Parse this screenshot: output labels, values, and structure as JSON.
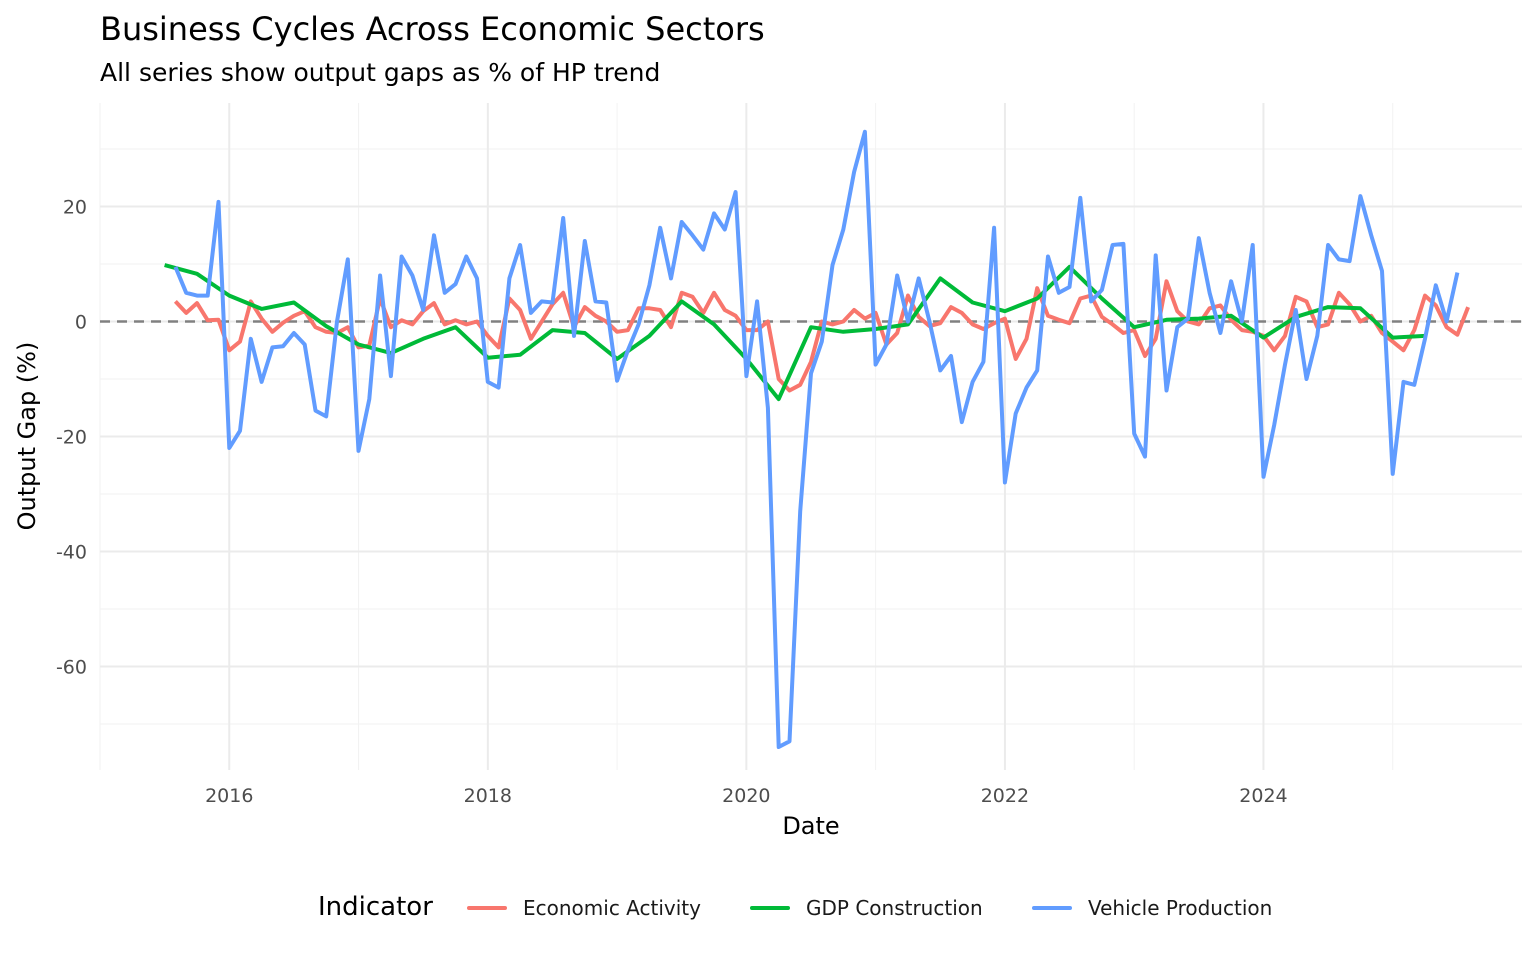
{
  "header": {
    "title": "Business Cycles Across Economic Sectors",
    "subtitle": "All series show output gaps as % of HP trend"
  },
  "legend": {
    "title": "Indicator",
    "items": [
      {
        "label": "Economic Activity",
        "color": "#F8766D"
      },
      {
        "label": "GDP Construction",
        "color": "#00BA38"
      },
      {
        "label": "Vehicle Production",
        "color": "#619CFF"
      }
    ]
  },
  "chart_data": {
    "type": "line",
    "title": "Business Cycles Across Economic Sectors",
    "subtitle": "All series show output gaps as % of HP trend",
    "xlabel": "Date",
    "ylabel": "Output Gap (%)",
    "xlim": [
      "2015-01",
      "2026-01"
    ],
    "ylim": [
      -78,
      38
    ],
    "x_ticks": [
      "2016",
      "2018",
      "2020",
      "2022",
      "2024"
    ],
    "y_ticks": [
      20,
      0,
      -20,
      -40,
      -60
    ],
    "grid": true,
    "legend_position": "bottom",
    "reference_line": {
      "y": 0,
      "style": "dashed",
      "color": "#808080"
    },
    "series": [
      {
        "name": "Economic Activity",
        "color": "#F8766D",
        "points": [
          [
            "2015-08",
            3.5
          ],
          [
            "2015-09",
            1.5
          ],
          [
            "2015-10",
            3.2
          ],
          [
            "2015-11",
            0.2
          ],
          [
            "2015-12",
            0.3
          ],
          [
            "2016-01",
            -5
          ],
          [
            "2016-02",
            -3.5
          ],
          [
            "2016-03",
            3.5
          ],
          [
            "2016-04",
            0.5
          ],
          [
            "2016-05",
            -1.8
          ],
          [
            "2016-06",
            -0.2
          ],
          [
            "2016-07",
            1
          ],
          [
            "2016-08",
            1.8
          ],
          [
            "2016-09",
            -1
          ],
          [
            "2016-10",
            -1.8
          ],
          [
            "2016-11",
            -2
          ],
          [
            "2016-12",
            -1
          ],
          [
            "2017-01",
            -4.5
          ],
          [
            "2017-02",
            -4.2
          ],
          [
            "2017-03",
            4
          ],
          [
            "2017-04",
            -1
          ],
          [
            "2017-05",
            0.2
          ],
          [
            "2017-06",
            -0.5
          ],
          [
            "2017-07",
            1.8
          ],
          [
            "2017-08",
            3.2
          ],
          [
            "2017-09",
            -0.5
          ],
          [
            "2017-10",
            0.2
          ],
          [
            "2017-11",
            -0.5
          ],
          [
            "2017-12",
            0
          ],
          [
            "2018-01",
            -2.5
          ],
          [
            "2018-02",
            -4.5
          ],
          [
            "2018-03",
            4
          ],
          [
            "2018-04",
            2
          ],
          [
            "2018-05",
            -3
          ],
          [
            "2018-06",
            0
          ],
          [
            "2018-07",
            3
          ],
          [
            "2018-08",
            5
          ],
          [
            "2018-09",
            -1
          ],
          [
            "2018-10",
            2.5
          ],
          [
            "2018-11",
            1
          ],
          [
            "2018-12",
            0
          ],
          [
            "2019-01",
            -1.8
          ],
          [
            "2019-02",
            -1.5
          ],
          [
            "2019-03",
            2.3
          ],
          [
            "2019-04",
            2.3
          ],
          [
            "2019-05",
            2
          ],
          [
            "2019-06",
            -1
          ],
          [
            "2019-07",
            5
          ],
          [
            "2019-08",
            4.3
          ],
          [
            "2019-09",
            1.5
          ],
          [
            "2019-10",
            5
          ],
          [
            "2019-11",
            2
          ],
          [
            "2019-12",
            1
          ],
          [
            "2020-01",
            -1.5
          ],
          [
            "2020-02",
            -1.5
          ],
          [
            "2020-03",
            0
          ],
          [
            "2020-04",
            -10
          ],
          [
            "2020-05",
            -12
          ],
          [
            "2020-06",
            -11
          ],
          [
            "2020-07",
            -7
          ],
          [
            "2020-08",
            0
          ],
          [
            "2020-09",
            -0.5
          ],
          [
            "2020-10",
            0
          ],
          [
            "2020-11",
            2
          ],
          [
            "2020-12",
            0.5
          ],
          [
            "2021-01",
            1.5
          ],
          [
            "2021-02",
            -4
          ],
          [
            "2021-03",
            -2
          ],
          [
            "2021-04",
            4.5
          ],
          [
            "2021-05",
            0.8
          ],
          [
            "2021-06",
            -0.8
          ],
          [
            "2021-07",
            -0.3
          ],
          [
            "2021-08",
            2.5
          ],
          [
            "2021-09",
            1.5
          ],
          [
            "2021-10",
            -0.5
          ],
          [
            "2021-11",
            -1.3
          ],
          [
            "2021-12",
            -0.3
          ],
          [
            "2022-01",
            0.5
          ],
          [
            "2022-02",
            -6.5
          ],
          [
            "2022-03",
            -3
          ],
          [
            "2022-04",
            5.8
          ],
          [
            "2022-05",
            1
          ],
          [
            "2022-06",
            0.3
          ],
          [
            "2022-07",
            -0.3
          ],
          [
            "2022-08",
            4
          ],
          [
            "2022-09",
            4.5
          ],
          [
            "2022-10",
            0.8
          ],
          [
            "2022-11",
            -0.5
          ],
          [
            "2022-12",
            -2
          ],
          [
            "2023-01",
            -1.5
          ],
          [
            "2023-02",
            -6
          ],
          [
            "2023-03",
            -3
          ],
          [
            "2023-04",
            7
          ],
          [
            "2023-05",
            1.8
          ],
          [
            "2023-06",
            0
          ],
          [
            "2023-07",
            -0.5
          ],
          [
            "2023-08",
            2.3
          ],
          [
            "2023-09",
            2.8
          ],
          [
            "2023-10",
            0.3
          ],
          [
            "2023-11",
            -1.5
          ],
          [
            "2023-12",
            -1.8
          ],
          [
            "2024-01",
            -2.5
          ],
          [
            "2024-02",
            -5
          ],
          [
            "2024-03",
            -2.5
          ],
          [
            "2024-04",
            4.3
          ],
          [
            "2024-05",
            3.5
          ],
          [
            "2024-06",
            -1
          ],
          [
            "2024-07",
            -0.5
          ],
          [
            "2024-08",
            5
          ],
          [
            "2024-09",
            3
          ],
          [
            "2024-10",
            0
          ],
          [
            "2024-11",
            1
          ],
          [
            "2024-12",
            -2
          ],
          [
            "2025-01",
            -3.5
          ],
          [
            "2025-02",
            -5
          ],
          [
            "2025-03",
            -1.5
          ],
          [
            "2025-04",
            4.5
          ],
          [
            "2025-05",
            2.8
          ],
          [
            "2025-06",
            -1
          ],
          [
            "2025-07",
            -2.3
          ],
          [
            "2025-08",
            2.5
          ]
        ]
      },
      {
        "name": "GDP Construction",
        "color": "#00BA38",
        "points": [
          [
            "2015-07",
            9.8
          ],
          [
            "2015-10",
            8.3
          ],
          [
            "2016-01",
            4.5
          ],
          [
            "2016-04",
            2.2
          ],
          [
            "2016-07",
            3.3
          ],
          [
            "2016-10",
            -0.8
          ],
          [
            "2017-01",
            -4
          ],
          [
            "2017-04",
            -5.5
          ],
          [
            "2017-07",
            -3
          ],
          [
            "2017-10",
            -1
          ],
          [
            "2018-01",
            -6.3
          ],
          [
            "2018-04",
            -5.8
          ],
          [
            "2018-07",
            -1.5
          ],
          [
            "2018-10",
            -2
          ],
          [
            "2019-01",
            -6.5
          ],
          [
            "2019-04",
            -2.5
          ],
          [
            "2019-07",
            3.5
          ],
          [
            "2019-10",
            -0.5
          ],
          [
            "2020-01",
            -6.5
          ],
          [
            "2020-04",
            -13.5
          ],
          [
            "2020-07",
            -1
          ],
          [
            "2020-10",
            -1.8
          ],
          [
            "2021-01",
            -1.3
          ],
          [
            "2021-04",
            -0.5
          ],
          [
            "2021-07",
            7.5
          ],
          [
            "2021-10",
            3.3
          ],
          [
            "2022-01",
            1.8
          ],
          [
            "2022-04",
            4
          ],
          [
            "2022-07",
            9.5
          ],
          [
            "2022-10",
            4
          ],
          [
            "2023-01",
            -1
          ],
          [
            "2023-04",
            0.3
          ],
          [
            "2023-07",
            0.5
          ],
          [
            "2023-10",
            1
          ],
          [
            "2024-01",
            -2.8
          ],
          [
            "2024-04",
            0.8
          ],
          [
            "2024-07",
            2.5
          ],
          [
            "2024-10",
            2.3
          ],
          [
            "2025-01",
            -2.8
          ],
          [
            "2025-04",
            -2.5
          ]
        ]
      },
      {
        "name": "Vehicle Production",
        "color": "#619CFF",
        "points": [
          [
            "2015-08",
            9.5
          ],
          [
            "2015-09",
            5
          ],
          [
            "2015-10",
            4.5
          ],
          [
            "2015-11",
            4.5
          ],
          [
            "2015-12",
            20.8
          ],
          [
            "2016-01",
            -22
          ],
          [
            "2016-02",
            -19
          ],
          [
            "2016-03",
            -3
          ],
          [
            "2016-04",
            -10.5
          ],
          [
            "2016-05",
            -4.5
          ],
          [
            "2016-06",
            -4.3
          ],
          [
            "2016-07",
            -2
          ],
          [
            "2016-08",
            -4
          ],
          [
            "2016-09",
            -15.5
          ],
          [
            "2016-10",
            -16.5
          ],
          [
            "2016-11",
            0
          ],
          [
            "2016-12",
            10.8
          ],
          [
            "2017-01",
            -22.5
          ],
          [
            "2017-02",
            -13.5
          ],
          [
            "2017-03",
            8
          ],
          [
            "2017-04",
            -9.5
          ],
          [
            "2017-05",
            11.3
          ],
          [
            "2017-06",
            8
          ],
          [
            "2017-07",
            2
          ],
          [
            "2017-08",
            15
          ],
          [
            "2017-09",
            5
          ],
          [
            "2017-10",
            6.5
          ],
          [
            "2017-11",
            11.3
          ],
          [
            "2017-12",
            7.5
          ],
          [
            "2018-01",
            -10.5
          ],
          [
            "2018-02",
            -11.5
          ],
          [
            "2018-03",
            7.5
          ],
          [
            "2018-04",
            13.3
          ],
          [
            "2018-05",
            1.5
          ],
          [
            "2018-06",
            3.5
          ],
          [
            "2018-07",
            3.3
          ],
          [
            "2018-08",
            18
          ],
          [
            "2018-09",
            -2.5
          ],
          [
            "2018-10",
            14
          ],
          [
            "2018-11",
            3.5
          ],
          [
            "2018-12",
            3.3
          ],
          [
            "2019-01",
            -10.3
          ],
          [
            "2019-02",
            -5
          ],
          [
            "2019-03",
            -0.5
          ],
          [
            "2019-04",
            6.3
          ],
          [
            "2019-05",
            16.3
          ],
          [
            "2019-06",
            7.5
          ],
          [
            "2019-07",
            17.3
          ],
          [
            "2019-08",
            15
          ],
          [
            "2019-09",
            12.5
          ],
          [
            "2019-10",
            18.8
          ],
          [
            "2019-11",
            16
          ],
          [
            "2019-12",
            22.5
          ],
          [
            "2020-01",
            -9.5
          ],
          [
            "2020-02",
            3.5
          ],
          [
            "2020-03",
            -15
          ],
          [
            "2020-04",
            -74
          ],
          [
            "2020-05",
            -73
          ],
          [
            "2020-06",
            -33
          ],
          [
            "2020-07",
            -9
          ],
          [
            "2020-08",
            -3.5
          ],
          [
            "2020-09",
            9.8
          ],
          [
            "2020-10",
            16
          ],
          [
            "2020-11",
            26
          ],
          [
            "2020-12",
            33
          ],
          [
            "2021-01",
            -7.5
          ],
          [
            "2021-02",
            -4
          ],
          [
            "2021-03",
            8
          ],
          [
            "2021-04",
            0
          ],
          [
            "2021-05",
            7.5
          ],
          [
            "2021-06",
            0
          ],
          [
            "2021-07",
            -8.5
          ],
          [
            "2021-08",
            -6
          ],
          [
            "2021-09",
            -17.5
          ],
          [
            "2021-10",
            -10.5
          ],
          [
            "2021-11",
            -7
          ],
          [
            "2021-12",
            16.3
          ],
          [
            "2022-01",
            -28
          ],
          [
            "2022-02",
            -16
          ],
          [
            "2022-03",
            -11.5
          ],
          [
            "2022-04",
            -8.5
          ],
          [
            "2022-05",
            11.3
          ],
          [
            "2022-06",
            5
          ],
          [
            "2022-07",
            6
          ],
          [
            "2022-08",
            21.5
          ],
          [
            "2022-09",
            3.5
          ],
          [
            "2022-10",
            5.5
          ],
          [
            "2022-11",
            13.3
          ],
          [
            "2022-12",
            13.5
          ],
          [
            "2023-01",
            -19.5
          ],
          [
            "2023-02",
            -23.5
          ],
          [
            "2023-03",
            11.5
          ],
          [
            "2023-04",
            -12
          ],
          [
            "2023-05",
            -1
          ],
          [
            "2023-06",
            0.5
          ],
          [
            "2023-07",
            14.5
          ],
          [
            "2023-08",
            5
          ],
          [
            "2023-09",
            -2
          ],
          [
            "2023-10",
            7
          ],
          [
            "2023-11",
            0
          ],
          [
            "2023-12",
            13.3
          ],
          [
            "2024-01",
            -27
          ],
          [
            "2024-02",
            -18
          ],
          [
            "2024-03",
            -7.5
          ],
          [
            "2024-04",
            2
          ],
          [
            "2024-05",
            -10
          ],
          [
            "2024-06",
            -2.5
          ],
          [
            "2024-07",
            13.3
          ],
          [
            "2024-08",
            10.8
          ],
          [
            "2024-09",
            10.5
          ],
          [
            "2024-10",
            21.8
          ],
          [
            "2024-11",
            15
          ],
          [
            "2024-12",
            8.8
          ],
          [
            "2025-01",
            -26.5
          ],
          [
            "2025-02",
            -10.5
          ],
          [
            "2025-03",
            -11
          ],
          [
            "2025-04",
            -3
          ],
          [
            "2025-05",
            6.3
          ],
          [
            "2025-06",
            0
          ],
          [
            "2025-07",
            8.5
          ]
        ]
      }
    ]
  }
}
